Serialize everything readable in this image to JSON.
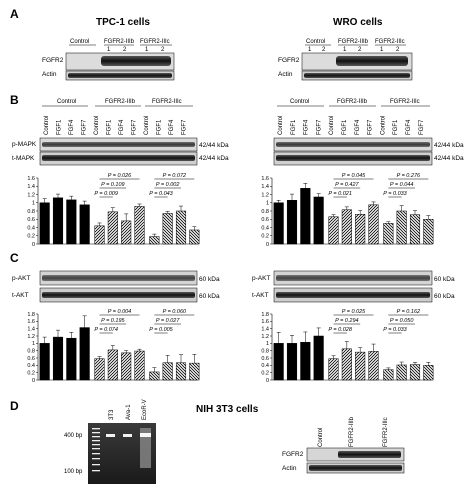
{
  "panels": {
    "A": {
      "letter": "A",
      "tpc_title": "TPC-1 cells",
      "wro_title": "WRO cells"
    },
    "B": {
      "letter": "B"
    },
    "C": {
      "letter": "C"
    },
    "D": {
      "letter": "D",
      "title": "NIH 3T3 cells"
    }
  },
  "blot_labels": {
    "fgfr2": "FGFR2",
    "actin": "Actin",
    "pmapk": "p-MAPK",
    "tmapk": "t-MAPK",
    "pakt": "p-AKT",
    "takt": "t-AKT",
    "kda_mapk": "42/44 kDa",
    "kda_akt": "60 kDa"
  },
  "a_headers": {
    "control": "Control",
    "iiib": "FGFR2-IIIb",
    "iiic": "FGFR2-IIIc",
    "one": "1",
    "two": "2"
  },
  "lane_headers": {
    "group_control": "Control",
    "group_iiib": "FGFR2-IIIb",
    "group_iiic": "FGFR2-IIIc",
    "lanes": [
      "Control",
      "FGF1",
      "FGF4",
      "FGF7",
      "Control",
      "FGF1",
      "FGF4",
      "FGF7",
      "Control",
      "FGF1",
      "FGF4",
      "FGF7"
    ]
  },
  "gel": {
    "lanes": [
      "3T3",
      "Ava-1",
      "EcoR-V"
    ],
    "bp400": "400 bp",
    "bp100": "100 bp"
  },
  "d_blot_lanes": [
    "Control",
    "FGFR2-IIIb",
    "FGFR2-IIIc"
  ],
  "chart_data": [
    {
      "type": "bar",
      "panel": "B-left",
      "categories": [
        "Control",
        "FGF1",
        "FGF4",
        "FGF7",
        "Control",
        "FGF1",
        "FGF4",
        "FGF7",
        "Control",
        "FGF1",
        "FGF4",
        "FGF7"
      ],
      "values": [
        1.0,
        1.12,
        1.07,
        0.95,
        0.44,
        0.78,
        0.56,
        0.91,
        0.18,
        0.74,
        0.8,
        0.34
      ],
      "errors": [
        0.1,
        0.09,
        0.09,
        0.09,
        0.07,
        0.1,
        0.17,
        0.06,
        0.06,
        0.05,
        0.12,
        0.08
      ],
      "ylim": [
        0,
        1.6
      ],
      "yticks": [
        "0",
        "0.2",
        "0.4",
        "0.6",
        "0.8",
        "1",
        "1.2",
        "1.4",
        "1.6"
      ],
      "pvalues": [
        {
          "text": "P = 0.026",
          "from": 4,
          "to": 7
        },
        {
          "text": "P = 0.109",
          "from": 4,
          "to": 6
        },
        {
          "text": "P = 0.009",
          "from": 4,
          "to": 5
        },
        {
          "text": "P = 0.072",
          "from": 8,
          "to": 11
        },
        {
          "text": "P = 0.002",
          "from": 8,
          "to": 10
        },
        {
          "text": "P = 0.043",
          "from": 8,
          "to": 9
        }
      ]
    },
    {
      "type": "bar",
      "panel": "B-right",
      "categories": [
        "Control",
        "FGF1",
        "FGF4",
        "FGF7",
        "Control",
        "FGF1",
        "FGF4",
        "FGF7",
        "Control",
        "FGF1",
        "FGF4",
        "FGF7"
      ],
      "values": [
        1.0,
        1.06,
        1.35,
        1.14,
        0.66,
        0.83,
        0.72,
        0.95,
        0.5,
        0.8,
        0.71,
        0.6
      ],
      "errors": [
        0.06,
        0.15,
        0.12,
        0.08,
        0.05,
        0.07,
        0.09,
        0.07,
        0.04,
        0.13,
        0.1,
        0.09
      ],
      "ylim": [
        0,
        1.6
      ],
      "yticks": [
        "0",
        "0.2",
        "0.4",
        "0.6",
        "0.8",
        "1",
        "1.2",
        "1.4",
        "1.6"
      ],
      "pvalues": [
        {
          "text": "P = 0.045",
          "from": 4,
          "to": 7
        },
        {
          "text": "P = 0.427",
          "from": 4,
          "to": 6
        },
        {
          "text": "P = 0.021",
          "from": 4,
          "to": 5
        },
        {
          "text": "P = 0.276",
          "from": 8,
          "to": 11
        },
        {
          "text": "P = 0.044",
          "from": 8,
          "to": 10
        },
        {
          "text": "P = 0.033",
          "from": 8,
          "to": 9
        }
      ]
    },
    {
      "type": "bar",
      "panel": "C-left",
      "categories": [
        "Control",
        "FGF1",
        "FGF4",
        "FGF7",
        "Control",
        "FGF1",
        "FGF4",
        "FGF7",
        "Control",
        "FGF1",
        "FGF4",
        "FGF7"
      ],
      "values": [
        1.0,
        1.17,
        1.14,
        1.43,
        0.58,
        0.82,
        0.74,
        0.79,
        0.22,
        0.47,
        0.47,
        0.46
      ],
      "errors": [
        0.17,
        0.19,
        0.16,
        0.32,
        0.06,
        0.12,
        0.06,
        0.05,
        0.12,
        0.2,
        0.22,
        0.24
      ],
      "ylim": [
        0,
        1.8
      ],
      "yticks": [
        "0",
        "0.2",
        "0.4",
        "0.6",
        "0.8",
        "1",
        "1.2",
        "1.4",
        "1.6",
        "1.8"
      ],
      "pvalues": [
        {
          "text": "P = 0.004",
          "from": 4,
          "to": 7
        },
        {
          "text": "P = 0.195",
          "from": 4,
          "to": 6
        },
        {
          "text": "P = 0.074",
          "from": 4,
          "to": 5
        },
        {
          "text": "P = 0.060",
          "from": 8,
          "to": 11
        },
        {
          "text": "P = 0.027",
          "from": 8,
          "to": 10
        },
        {
          "text": "P = 0.005",
          "from": 8,
          "to": 9
        }
      ]
    },
    {
      "type": "bar",
      "panel": "C-right",
      "categories": [
        "Control",
        "FGF1",
        "FGF4",
        "FGF7",
        "Control",
        "FGF1",
        "FGF4",
        "FGF7",
        "Control",
        "FGF1",
        "FGF4",
        "FGF7"
      ],
      "values": [
        1.0,
        1.0,
        1.03,
        1.2,
        0.58,
        0.85,
        0.76,
        0.78,
        0.28,
        0.41,
        0.42,
        0.4
      ],
      "errors": [
        0.3,
        0.22,
        0.28,
        0.22,
        0.08,
        0.2,
        0.12,
        0.2,
        0.05,
        0.08,
        0.06,
        0.08
      ],
      "ylim": [
        0,
        1.8
      ],
      "yticks": [
        "0",
        "0.2",
        "0.4",
        "0.6",
        "0.8",
        "1",
        "1.2",
        "1.4",
        "1.6",
        "1.8"
      ],
      "pvalues": [
        {
          "text": "P = 0.025",
          "from": 4,
          "to": 7
        },
        {
          "text": "P = 0.294",
          "from": 4,
          "to": 6
        },
        {
          "text": "P = 0.028",
          "from": 4,
          "to": 5
        },
        {
          "text": "P = 0.162",
          "from": 8,
          "to": 11
        },
        {
          "text": "P = 0.050",
          "from": 8,
          "to": 10
        },
        {
          "text": "P = 0.033",
          "from": 8,
          "to": 9
        }
      ]
    }
  ]
}
